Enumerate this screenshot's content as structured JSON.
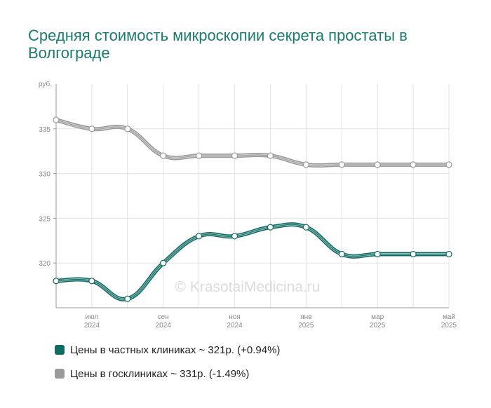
{
  "title": "Средняя стоимость микроскопии секрета простаты в Волгограде",
  "watermark": "© KrasotaiMedicina.ru",
  "colors": {
    "private": "#0e6b63",
    "public": "#9a9a9a",
    "title": "#1b7a6e"
  },
  "chart_data": {
    "type": "line",
    "y_unit_label": "руб.",
    "ylim": [
      315,
      340
    ],
    "y_ticks": [
      "320",
      "325",
      "330",
      "335"
    ],
    "x_labels": [
      {
        "month": "июл",
        "year": "2024",
        "index": 1
      },
      {
        "month": "сен",
        "year": "2024",
        "index": 3
      },
      {
        "month": "ноя",
        "year": "2024",
        "index": 5
      },
      {
        "month": "янв",
        "year": "2025",
        "index": 7
      },
      {
        "month": "мар",
        "year": "2025",
        "index": 9
      },
      {
        "month": "май",
        "year": "2025",
        "index": 11
      }
    ],
    "x": [
      "июн 2024",
      "июл 2024",
      "авг 2024",
      "сен 2024",
      "окт 2024",
      "ноя 2024",
      "дек 2024",
      "янв 2025",
      "фев 2025",
      "мар 2025",
      "апр 2025",
      "май 2025"
    ],
    "series": [
      {
        "name": "Цены в частных клиниках",
        "key": "private",
        "values": [
          318,
          318,
          316,
          320,
          323,
          323,
          324,
          324,
          321,
          321,
          321,
          321
        ]
      },
      {
        "name": "Цены в госклиниках",
        "key": "public",
        "values": [
          336,
          335,
          335,
          332,
          332,
          332,
          332,
          331,
          331,
          331,
          331,
          331
        ]
      }
    ],
    "grid": true,
    "legend_position": "bottom"
  },
  "legend": [
    {
      "key": "private",
      "label": "Цены в частных клиниках ~ 321р. (+0.94%)"
    },
    {
      "key": "public",
      "label": "Цены в госклиниках ~ 331р. (-1.49%)"
    }
  ]
}
